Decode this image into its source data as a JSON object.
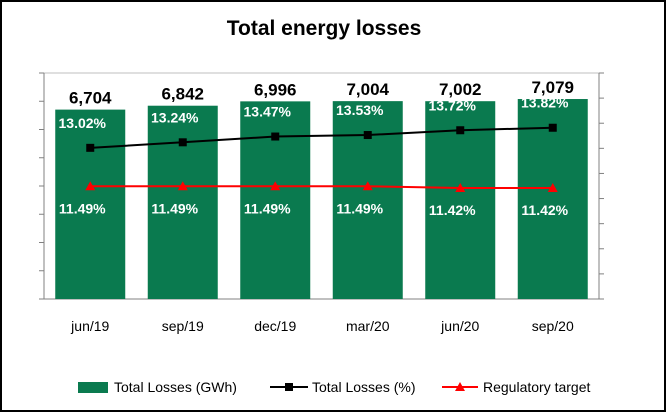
{
  "chart_data": {
    "type": "bar",
    "title": "Total energy losses",
    "categories": [
      "jun/19",
      "sep/19",
      "dec/19",
      "mar/20",
      "jun/20",
      "sep/20"
    ],
    "series": [
      {
        "name": "Total Losses (GWh)",
        "type": "bar",
        "axis": "left",
        "color": "#0a7a4f",
        "values": [
          6704,
          6842,
          6996,
          7004,
          7002,
          7079
        ],
        "labels": [
          "6,704",
          "6,842",
          "6,996",
          "7,004",
          "7,002",
          "7,079"
        ]
      },
      {
        "name": "Total Losses (%)",
        "type": "line",
        "axis": "right",
        "marker": "square",
        "color": "#000000",
        "values": [
          13.02,
          13.24,
          13.47,
          13.53,
          13.72,
          13.82
        ],
        "labels": [
          "13.02%",
          "13.24%",
          "13.47%",
          "13.53%",
          "13.72%",
          "13.82%"
        ]
      },
      {
        "name": "Regulatory target",
        "type": "line",
        "axis": "right",
        "marker": "triangle",
        "color": "#ff0000",
        "values": [
          11.49,
          11.49,
          11.49,
          11.49,
          11.42,
          11.42
        ],
        "labels": [
          "11.49%",
          "11.49%",
          "11.49%",
          "11.49%",
          "11.42%",
          "11.42%"
        ]
      }
    ],
    "ylim_left": [
      0,
      8000
    ],
    "ylim_right": [
      7,
      16
    ],
    "grid": false,
    "legend": "bottom"
  }
}
